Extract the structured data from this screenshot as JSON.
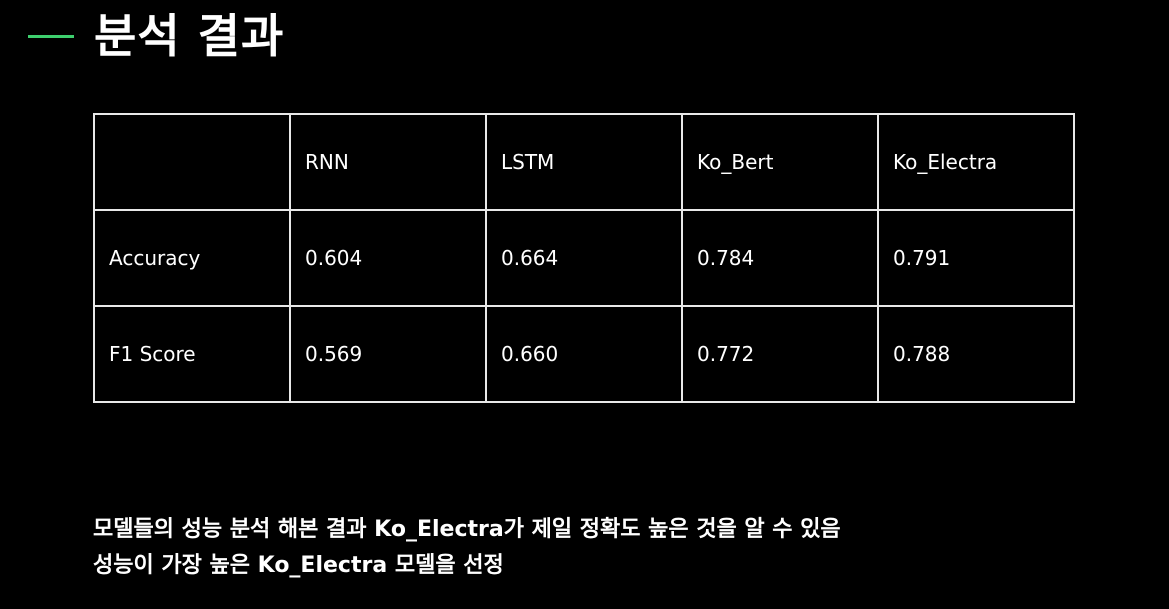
{
  "header": {
    "title": "분석 결과",
    "accent_color": "#3ecf6e"
  },
  "table": {
    "columns": [
      "",
      "RNN",
      "LSTM",
      "Ko_Bert",
      "Ko_Electra"
    ],
    "rows": [
      [
        "Accuracy",
        "0.604",
        "0.664",
        "0.784",
        "0.791"
      ],
      [
        "F1 Score",
        "0.569",
        "0.660",
        "0.772",
        "0.788"
      ]
    ]
  },
  "summary": {
    "line1": "모델들의 성능 분석 해본 결과 Ko_Electra가 제일 정확도 높은 것을 알 수 있음",
    "line2": "성능이 가장 높은 Ko_Electra 모델을 선정"
  }
}
